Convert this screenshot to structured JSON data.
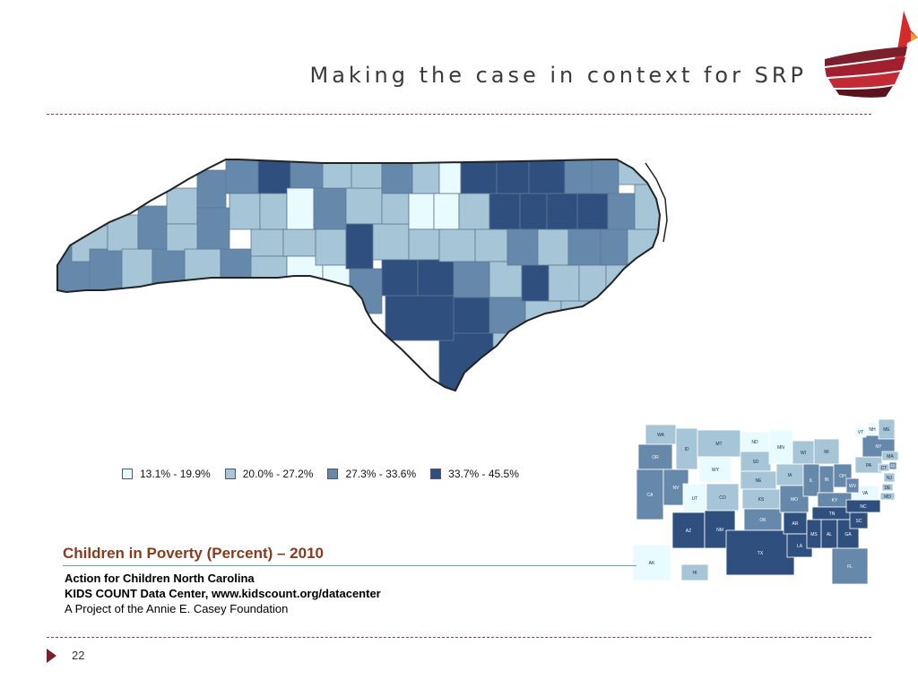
{
  "slide": {
    "title": "Making the case in context for SRP",
    "number": "22"
  },
  "colors": {
    "accent": "#7a1f2c",
    "divider": "#a33a3a",
    "tier1": "#e8fbff",
    "tier2": "#a6c6d8",
    "tier3": "#6688aa",
    "tier4": "#2f4f7f"
  },
  "legend": {
    "items": [
      {
        "label": "13.1% - 19.9%",
        "color": "#e8fbff"
      },
      {
        "label": "20.0% - 27.2%",
        "color": "#a6c6d8"
      },
      {
        "label": "27.3% - 33.6%",
        "color": "#6688aa"
      },
      {
        "label": "33.7% - 45.5%",
        "color": "#2f4f7f"
      }
    ]
  },
  "caption": {
    "title": "Children in Poverty (Percent) – 2010",
    "line1": "Action for Children North Carolina",
    "line2": "KIDS COUNT Data Center, www.kidscount.org/datacenter",
    "line3": "A Project of the Annie E. Casey Foundation"
  },
  "us_states": [
    "WA",
    "OR",
    "CA",
    "NV",
    "ID",
    "MT",
    "WY",
    "UT",
    "CO",
    "AZ",
    "NM",
    "ND",
    "SD",
    "NE",
    "KS",
    "OK",
    "TX",
    "MN",
    "IA",
    "MO",
    "AR",
    "LA",
    "WI",
    "IL",
    "MI",
    "IN",
    "OH",
    "KY",
    "TN",
    "MS",
    "AL",
    "GA",
    "FL",
    "SC",
    "NC",
    "VA",
    "WV",
    "PA",
    "NY",
    "VT",
    "NH",
    "ME",
    "MA",
    "CT",
    "RI",
    "NJ",
    "DE",
    "MD",
    "AK",
    "HI"
  ]
}
